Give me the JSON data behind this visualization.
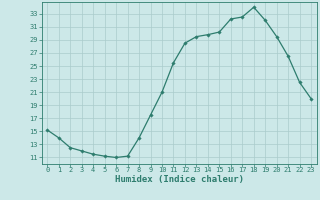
{
  "x": [
    0,
    1,
    2,
    3,
    4,
    5,
    6,
    7,
    8,
    9,
    10,
    11,
    12,
    13,
    14,
    15,
    16,
    17,
    18,
    19,
    20,
    21,
    22,
    23
  ],
  "y": [
    15.2,
    14.0,
    12.5,
    12.0,
    11.5,
    11.2,
    11.0,
    11.2,
    14.0,
    17.5,
    21.0,
    25.5,
    28.5,
    29.5,
    29.8,
    30.2,
    32.2,
    32.5,
    34.0,
    32.0,
    29.5,
    26.5,
    22.5,
    20.0
  ],
  "line_color": "#2e7d6e",
  "marker": "D",
  "marker_size": 1.8,
  "bg_color": "#cce8e8",
  "grid_color": "#aacccc",
  "axis_color": "#2e7d6e",
  "tick_color": "#2e7d6e",
  "xlabel": "Humidex (Indice chaleur)",
  "xlabel_fontsize": 6.5,
  "yticks": [
    11,
    13,
    15,
    17,
    19,
    21,
    23,
    25,
    27,
    29,
    31,
    33
  ],
  "xticks": [
    0,
    1,
    2,
    3,
    4,
    5,
    6,
    7,
    8,
    9,
    10,
    11,
    12,
    13,
    14,
    15,
    16,
    17,
    18,
    19,
    20,
    21,
    22,
    23
  ],
  "ylim": [
    10.0,
    34.8
  ],
  "xlim": [
    -0.5,
    23.5
  ]
}
